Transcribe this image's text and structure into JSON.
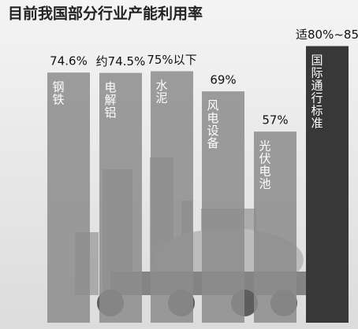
{
  "chart_data": {
    "type": "bar",
    "title": "目前我国部分行业产能利用率",
    "categories": [
      "钢铁",
      "电解铝",
      "水泥",
      "风电设备",
      "光伏电池",
      "国际通行标准"
    ],
    "values": [
      74.6,
      74.5,
      75,
      69,
      57,
      82.5
    ],
    "value_labels": [
      "74.6%",
      "约74.5%",
      "75%以下",
      "69%",
      "57%",
      "适80%~85"
    ],
    "colors": [
      "#8c8c8c",
      "#8c8c8c",
      "#8c8c8c",
      "#8c8c8c",
      "#8c8c8c",
      "#383838"
    ]
  }
}
